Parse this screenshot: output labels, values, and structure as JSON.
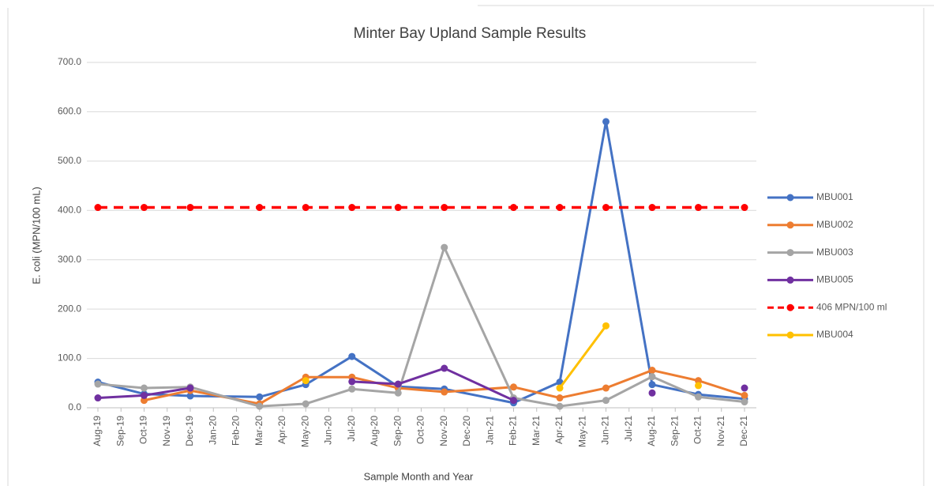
{
  "chart_data": {
    "type": "line",
    "title": "Minter Bay Upland Sample Results",
    "xlabel": "Sample Month and Year",
    "ylabel": "E. coli (MPN/100 mL)",
    "xticks": [
      "Aug-19",
      "Sep-19",
      "Oct-19",
      "Nov-19",
      "Dec-19",
      "Jan-20",
      "Feb-20",
      "Mar-20",
      "Apr-20",
      "May-20",
      "Jun-20",
      "Jul-20",
      "Aug-20",
      "Sep-20",
      "Oct-20",
      "Nov-20",
      "Dec-20",
      "Jan-21",
      "Feb-21",
      "Mar-21",
      "Apr-21",
      "May-21",
      "Jun-21",
      "Jul-21",
      "Aug-21",
      "Sep-21",
      "Oct-21",
      "Nov-21",
      "Dec-21"
    ],
    "x": [
      "Aug-19",
      "Oct-19",
      "Dec-19",
      "Mar-20",
      "May-20",
      "Jul-20",
      "Sep-20",
      "Nov-20",
      "Feb-21",
      "Apr-21",
      "Jun-21",
      "Aug-21",
      "Oct-21",
      "Dec-21"
    ],
    "series": [
      {
        "name": "MBU001",
        "color": "#4472c4",
        "values": [
          52,
          28,
          24,
          22,
          47,
          104,
          43,
          38,
          10,
          52,
          580,
          47,
          27,
          18
        ]
      },
      {
        "name": "MBU002",
        "color": "#ed7d31",
        "values": [
          null,
          15,
          35,
          8,
          62,
          62,
          40,
          32,
          42,
          20,
          40,
          76,
          55,
          25
        ]
      },
      {
        "name": "MBU003",
        "color": "#a5a5a5",
        "values": [
          48,
          40,
          42,
          3,
          8,
          38,
          30,
          325,
          20,
          3,
          15,
          63,
          22,
          12
        ]
      },
      {
        "name": "MBU005",
        "color": "#7030a0",
        "values": [
          20,
          25,
          40,
          null,
          null,
          53,
          48,
          80,
          15,
          null,
          null,
          30,
          null,
          40
        ]
      },
      {
        "name": "406 MPN/100 ml",
        "color": "#ff0000",
        "dashed": true,
        "values": [
          406,
          406,
          406,
          406,
          406,
          406,
          406,
          406,
          406,
          406,
          406,
          406,
          406,
          406
        ]
      },
      {
        "name": "MBU004",
        "color": "#ffc000",
        "values": [
          null,
          null,
          null,
          null,
          55,
          null,
          null,
          null,
          null,
          40,
          166,
          null,
          45,
          null
        ]
      }
    ],
    "ylim": [
      0,
      700
    ],
    "yticks": [
      {
        "value": 0,
        "label": "0.0"
      },
      {
        "value": 100,
        "label": "100.0"
      },
      {
        "value": 200,
        "label": "200.0"
      },
      {
        "value": 300,
        "label": "300.0"
      },
      {
        "value": 400,
        "label": "400.0"
      },
      {
        "value": 500,
        "label": "500.0"
      },
      {
        "value": 600,
        "label": "600.0"
      },
      {
        "value": 700,
        "label": "700.0"
      }
    ],
    "legend": "right"
  }
}
